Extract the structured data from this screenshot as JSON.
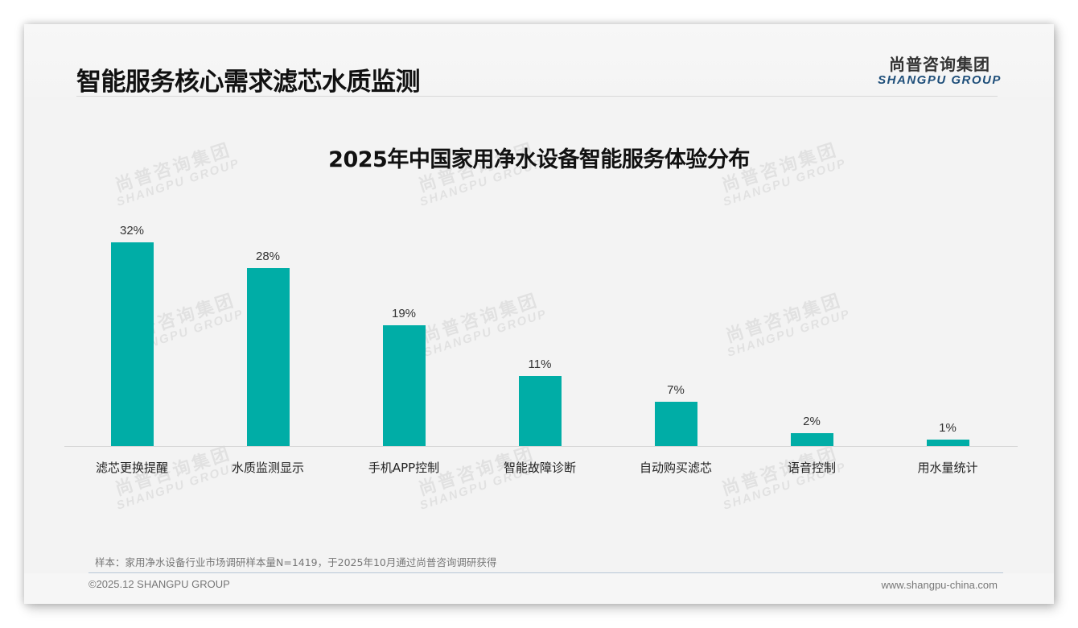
{
  "header": {
    "title": "智能服务核心需求滤芯水质监测",
    "logo_cn": "尚普咨询集团",
    "logo_en": "SHANGPU GROUP"
  },
  "watermark": {
    "cn": "尚普咨询集团",
    "en": "SHANGPU GROUP"
  },
  "chart_data": {
    "type": "bar",
    "title": "2025年中国家用净水设备智能服务体验分布",
    "categories": [
      "滤芯更换提醒",
      "水质监测显示",
      "手机APP控制",
      "智能故障诊断",
      "自动购买滤芯",
      "语音控制",
      "用水量统计"
    ],
    "values": [
      32,
      28,
      19,
      11,
      7,
      2,
      1
    ],
    "value_labels": [
      "32%",
      "28%",
      "19%",
      "11%",
      "7%",
      "2%",
      "1%"
    ],
    "unit": "%",
    "xlabel": "",
    "ylabel": "",
    "ylim": [
      0,
      32
    ],
    "grid": false,
    "legend": "none",
    "bar_color": "#00ada6"
  },
  "footer": {
    "note": "样本：家用净水设备行业市场调研样本量N=1419，于2025年10月通过尚普咨询调研获得",
    "copyright": "©2025.12 SHANGPU GROUP",
    "website": "www.shangpu-china.com"
  }
}
